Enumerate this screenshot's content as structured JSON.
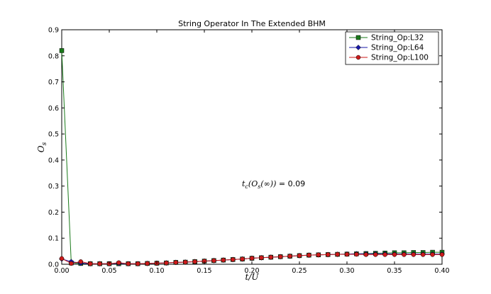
{
  "chart_data": {
    "type": "line",
    "title": "String Operator In The Extended BHM",
    "xlabel": "t/U",
    "ylabel": "O_s",
    "ylabel_base": "O",
    "ylabel_sub": "s",
    "xlim": [
      0.0,
      0.4
    ],
    "ylim": [
      0.0,
      0.9
    ],
    "xticks": [
      "0.00",
      "0.05",
      "0.10",
      "0.15",
      "0.20",
      "0.25",
      "0.30",
      "0.35",
      "0.40"
    ],
    "yticks": [
      "0.0",
      "0.1",
      "0.2",
      "0.3",
      "0.4",
      "0.5",
      "0.6",
      "0.7",
      "0.8",
      "0.9"
    ],
    "grid": false,
    "legend_position": "top-right",
    "annotation": {
      "math": "t_c(O_s(∞))",
      "math_base": "t",
      "math_sub": "c",
      "math_rest": "(O",
      "math_sub2": "s",
      "math_tail": "(∞))",
      "equals": " = 0.09",
      "x": 0.2,
      "y": 0.4
    },
    "x": [
      0.0,
      0.01,
      0.02,
      0.03,
      0.04,
      0.05,
      0.06,
      0.07,
      0.08,
      0.09,
      0.1,
      0.11,
      0.12,
      0.13,
      0.14,
      0.15,
      0.16,
      0.17,
      0.18,
      0.19,
      0.2,
      0.21,
      0.22,
      0.23,
      0.24,
      0.25,
      0.26,
      0.27,
      0.28,
      0.29,
      0.3,
      0.31,
      0.32,
      0.33,
      0.34,
      0.35,
      0.36,
      0.37,
      0.38,
      0.39,
      0.4
    ],
    "series": [
      {
        "name": "String_Op:L32",
        "color": "#1a7a1a",
        "marker": "square",
        "values": [
          0.82,
          0.005,
          0.003,
          0.002,
          0.002,
          0.002,
          0.002,
          0.002,
          0.002,
          0.003,
          0.004,
          0.005,
          0.007,
          0.008,
          0.01,
          0.012,
          0.014,
          0.016,
          0.018,
          0.02,
          0.023,
          0.025,
          0.027,
          0.029,
          0.031,
          0.033,
          0.035,
          0.036,
          0.037,
          0.038,
          0.039,
          0.04,
          0.041,
          0.042,
          0.043,
          0.044,
          0.044,
          0.045,
          0.045,
          0.046,
          0.046
        ]
      },
      {
        "name": "String_Op:L64",
        "color": "#1a1aa8",
        "marker": "diamond",
        "values": [
          0.02,
          0.01,
          0.004,
          0.002,
          0.002,
          0.002,
          0.003,
          0.002,
          0.002,
          0.003,
          0.004,
          0.005,
          0.007,
          0.008,
          0.01,
          0.012,
          0.014,
          0.016,
          0.018,
          0.02,
          0.023,
          0.025,
          0.027,
          0.029,
          0.031,
          0.033,
          0.035,
          0.036,
          0.037,
          0.038,
          0.039,
          0.04,
          0.04,
          0.04,
          0.04,
          0.039,
          0.039,
          0.039,
          0.039,
          0.039,
          0.039
        ]
      },
      {
        "name": "String_Op:L100",
        "color": "#cc1a1a",
        "marker": "circle",
        "values": [
          0.022,
          0.003,
          0.01,
          0.002,
          0.002,
          0.002,
          0.006,
          0.002,
          0.002,
          0.003,
          0.004,
          0.005,
          0.007,
          0.008,
          0.01,
          0.012,
          0.014,
          0.016,
          0.018,
          0.02,
          0.023,
          0.025,
          0.027,
          0.029,
          0.031,
          0.033,
          0.035,
          0.036,
          0.037,
          0.038,
          0.038,
          0.038,
          0.037,
          0.037,
          0.037,
          0.037,
          0.037,
          0.037,
          0.037,
          0.037,
          0.037
        ]
      }
    ]
  }
}
